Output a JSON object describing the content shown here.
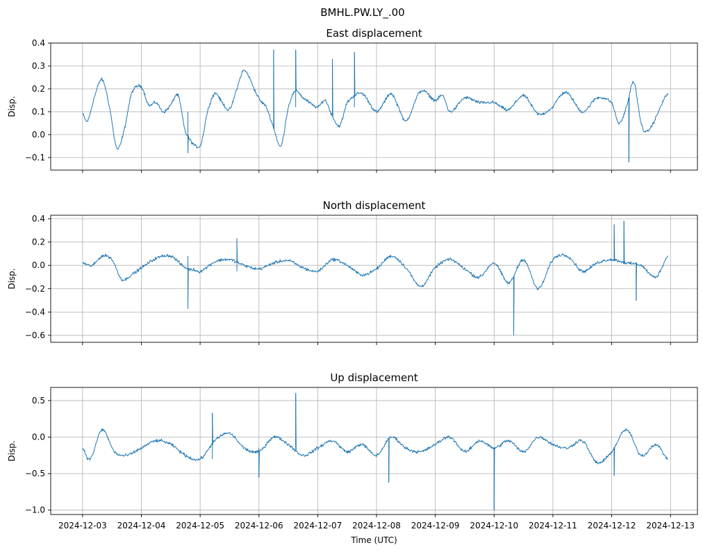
{
  "figure_title": "BMHL.PW.LY_.00",
  "colors": {
    "trace": "#1f77b4",
    "grid": "#b0b0b0"
  },
  "chart_data": [
    {
      "type": "line",
      "title": "East displacement",
      "xlabel": "",
      "ylabel": "Disp.",
      "ylim": [
        -0.155,
        0.4
      ],
      "yticks": [
        -0.1,
        0.0,
        0.1,
        0.2,
        0.3,
        0.4
      ],
      "ytick_labels": [
        "−0.1",
        "0.0",
        "0.1",
        "0.2",
        "0.3",
        "0.4"
      ],
      "grid": true,
      "x_dates": [
        "2024-12-03",
        "2024-12-03",
        "2024-12-03",
        "2024-12-03",
        "2024-12-03",
        "2024-12-03",
        "2024-12-03",
        "2024-12-03",
        "2024-12-04",
        "2024-12-04",
        "2024-12-04",
        "2024-12-04",
        "2024-12-04",
        "2024-12-04",
        "2024-12-04",
        "2024-12-05",
        "2024-12-05",
        "2024-12-05",
        "2024-12-05",
        "2024-12-05",
        "2024-12-05",
        "2024-12-05",
        "2024-12-06",
        "2024-12-06",
        "2024-12-06",
        "2024-12-06",
        "2024-12-06",
        "2024-12-06",
        "2024-12-06",
        "2024-12-07",
        "2024-12-07",
        "2024-12-07",
        "2024-12-07",
        "2024-12-07",
        "2024-12-07",
        "2024-12-08",
        "2024-12-08",
        "2024-12-08",
        "2024-12-08",
        "2024-12-08",
        "2024-12-08",
        "2024-12-09",
        "2024-12-09",
        "2024-12-09",
        "2024-12-09",
        "2024-12-09",
        "2024-12-10",
        "2024-12-10",
        "2024-12-10",
        "2024-12-10",
        "2024-12-10",
        "2024-12-11",
        "2024-12-11",
        "2024-12-11",
        "2024-12-11",
        "2024-12-11",
        "2024-12-12",
        "2024-12-12",
        "2024-12-12",
        "2024-12-12",
        "2024-12-12",
        "2024-12-12",
        "2024-12-12"
      ],
      "x_hours": [
        0,
        2,
        5,
        8,
        11,
        14,
        17,
        20,
        0,
        3,
        6,
        9,
        12,
        15,
        18,
        0,
        3,
        6,
        9,
        12,
        15,
        18,
        0,
        3,
        6,
        9,
        12,
        15,
        18,
        0,
        3,
        6,
        9,
        12,
        18,
        0,
        3,
        6,
        9,
        12,
        18,
        0,
        3,
        6,
        12,
        18,
        0,
        3,
        6,
        12,
        18,
        0,
        3,
        6,
        12,
        18,
        0,
        3,
        6,
        9,
        12,
        15,
        23
      ],
      "values": [
        0.09,
        0.06,
        0.17,
        0.24,
        0.12,
        -0.06,
        0.02,
        0.18,
        0.21,
        0.13,
        0.14,
        0.1,
        0.13,
        0.17,
        0.01,
        -0.05,
        0.1,
        0.18,
        0.14,
        0.11,
        0.2,
        0.28,
        0.16,
        0.12,
        0.03,
        -0.05,
        0.12,
        0.19,
        0.16,
        0.12,
        0.15,
        0.08,
        0.04,
        0.14,
        0.18,
        0.1,
        0.14,
        0.18,
        0.12,
        0.06,
        0.19,
        0.15,
        0.17,
        0.1,
        0.16,
        0.14,
        0.14,
        0.12,
        0.11,
        0.17,
        0.09,
        0.12,
        0.17,
        0.18,
        0.1,
        0.16,
        0.14,
        0.05,
        0.12,
        0.23,
        0.05,
        0.02,
        0.18
      ],
      "spikes": [
        {
          "date": "2024-12-04",
          "hour": 19,
          "value": -0.08
        },
        {
          "date": "2024-12-06",
          "hour": 6,
          "value": 0.37
        },
        {
          "date": "2024-12-06",
          "hour": 15,
          "value": 0.37
        },
        {
          "date": "2024-12-07",
          "hour": 6,
          "value": 0.33
        },
        {
          "date": "2024-12-07",
          "hour": 15,
          "value": 0.36
        },
        {
          "date": "2024-12-12",
          "hour": 7,
          "value": -0.12
        }
      ]
    },
    {
      "type": "line",
      "title": "North displacement",
      "xlabel": "",
      "ylabel": "Disp.",
      "ylim": [
        -0.66,
        0.43
      ],
      "yticks": [
        -0.6,
        -0.4,
        -0.2,
        0.0,
        0.2,
        0.4
      ],
      "ytick_labels": [
        "−0.6",
        "−0.4",
        "−0.2",
        "0.0",
        "0.2",
        "0.4"
      ],
      "grid": true,
      "x_dates": [
        "2024-12-03",
        "2024-12-03",
        "2024-12-03",
        "2024-12-03",
        "2024-12-03",
        "2024-12-03",
        "2024-12-04",
        "2024-12-04",
        "2024-12-04",
        "2024-12-04",
        "2024-12-04",
        "2024-12-05",
        "2024-12-05",
        "2024-12-05",
        "2024-12-05",
        "2024-12-06",
        "2024-12-06",
        "2024-12-06",
        "2024-12-06",
        "2024-12-07",
        "2024-12-07",
        "2024-12-07",
        "2024-12-07",
        "2024-12-08",
        "2024-12-08",
        "2024-12-08",
        "2024-12-08",
        "2024-12-09",
        "2024-12-09",
        "2024-12-09",
        "2024-12-09",
        "2024-12-10",
        "2024-12-10",
        "2024-12-10",
        "2024-12-10",
        "2024-12-11",
        "2024-12-11",
        "2024-12-11",
        "2024-12-11",
        "2024-12-12",
        "2024-12-12",
        "2024-12-12",
        "2024-12-12",
        "2024-12-12"
      ],
      "x_hours": [
        0,
        4,
        8,
        12,
        16,
        20,
        0,
        6,
        12,
        18,
        22,
        0,
        6,
        12,
        18,
        0,
        6,
        12,
        18,
        0,
        6,
        12,
        18,
        0,
        6,
        12,
        18,
        0,
        6,
        12,
        18,
        0,
        6,
        12,
        18,
        0,
        6,
        12,
        18,
        0,
        6,
        12,
        18,
        23
      ],
      "values": [
        0.02,
        0.0,
        0.08,
        0.05,
        -0.12,
        -0.08,
        -0.02,
        0.06,
        0.08,
        -0.02,
        -0.04,
        -0.05,
        0.03,
        0.05,
        0.0,
        -0.03,
        0.02,
        0.04,
        -0.02,
        -0.05,
        0.05,
        0.0,
        -0.08,
        -0.03,
        0.08,
        -0.02,
        -0.18,
        -0.02,
        0.05,
        -0.03,
        -0.1,
        0.02,
        -0.15,
        0.05,
        -0.2,
        0.05,
        0.08,
        -0.05,
        0.02,
        0.05,
        0.02,
        0.0,
        -0.1,
        0.08
      ],
      "spikes": [
        {
          "date": "2024-12-04",
          "hour": 19,
          "value": -0.37
        },
        {
          "date": "2024-12-05",
          "hour": 15,
          "value": 0.23
        },
        {
          "date": "2024-12-10",
          "hour": 8,
          "value": -0.6
        },
        {
          "date": "2024-12-12",
          "hour": 1,
          "value": 0.35
        },
        {
          "date": "2024-12-12",
          "hour": 5,
          "value": 0.38
        },
        {
          "date": "2024-12-12",
          "hour": 10,
          "value": -0.3
        }
      ]
    },
    {
      "type": "line",
      "title": "Up displacement",
      "xlabel": "Time (UTC)",
      "ylabel": "Disp.",
      "ylim": [
        -1.06,
        0.68
      ],
      "yticks": [
        -1.0,
        -0.5,
        0.0,
        0.5
      ],
      "ytick_labels": [
        "−1.0",
        "−0.5",
        "0.0",
        "0.5"
      ],
      "grid": true,
      "x_dates": [
        "2024-12-03",
        "2024-12-03",
        "2024-12-03",
        "2024-12-03",
        "2024-12-03",
        "2024-12-04",
        "2024-12-04",
        "2024-12-04",
        "2024-12-04",
        "2024-12-05",
        "2024-12-05",
        "2024-12-05",
        "2024-12-05",
        "2024-12-06",
        "2024-12-06",
        "2024-12-06",
        "2024-12-06",
        "2024-12-07",
        "2024-12-07",
        "2024-12-07",
        "2024-12-07",
        "2024-12-08",
        "2024-12-08",
        "2024-12-08",
        "2024-12-08",
        "2024-12-09",
        "2024-12-09",
        "2024-12-09",
        "2024-12-09",
        "2024-12-10",
        "2024-12-10",
        "2024-12-10",
        "2024-12-10",
        "2024-12-11",
        "2024-12-11",
        "2024-12-11",
        "2024-12-11",
        "2024-12-12",
        "2024-12-12",
        "2024-12-12",
        "2024-12-12",
        "2024-12-12"
      ],
      "x_hours": [
        0,
        3,
        8,
        13,
        18,
        0,
        6,
        12,
        18,
        0,
        6,
        12,
        18,
        0,
        6,
        12,
        18,
        0,
        6,
        12,
        18,
        0,
        6,
        12,
        18,
        0,
        6,
        12,
        18,
        0,
        6,
        12,
        18,
        0,
        6,
        12,
        18,
        0,
        6,
        12,
        18,
        23
      ],
      "values": [
        -0.15,
        -0.3,
        0.1,
        -0.2,
        -0.25,
        -0.15,
        -0.05,
        -0.1,
        -0.25,
        -0.3,
        -0.05,
        0.05,
        -0.15,
        -0.2,
        0.0,
        -0.1,
        -0.25,
        -0.15,
        -0.05,
        -0.2,
        -0.1,
        -0.25,
        0.0,
        -0.15,
        -0.2,
        -0.1,
        0.0,
        -0.2,
        -0.05,
        -0.15,
        -0.05,
        -0.2,
        0.0,
        -0.1,
        -0.15,
        -0.05,
        -0.35,
        -0.2,
        0.1,
        -0.25,
        -0.1,
        -0.3
      ],
      "spikes": [
        {
          "date": "2024-12-05",
          "hour": 5,
          "value": 0.33
        },
        {
          "date": "2024-12-06",
          "hour": 0,
          "value": -0.55
        },
        {
          "date": "2024-12-06",
          "hour": 15,
          "value": 0.6
        },
        {
          "date": "2024-12-08",
          "hour": 5,
          "value": -0.62
        },
        {
          "date": "2024-12-10",
          "hour": 0,
          "value": -1.0
        },
        {
          "date": "2024-12-12",
          "hour": 1,
          "value": -0.53
        }
      ]
    }
  ],
  "x_axis": {
    "range": [
      "2024-12-02T11:00",
      "2024-12-13T11:00"
    ],
    "ticks": [
      "2024-12-03",
      "2024-12-04",
      "2024-12-05",
      "2024-12-06",
      "2024-12-07",
      "2024-12-08",
      "2024-12-09",
      "2024-12-10",
      "2024-12-11",
      "2024-12-12",
      "2024-12-13"
    ],
    "tick_labels": [
      "2024-12-03",
      "2024-12-04",
      "2024-12-05",
      "2024-12-06",
      "2024-12-07",
      "2024-12-08",
      "2024-12-09",
      "2024-12-10",
      "2024-12-11",
      "2024-12-12",
      "2024-12-13"
    ]
  }
}
